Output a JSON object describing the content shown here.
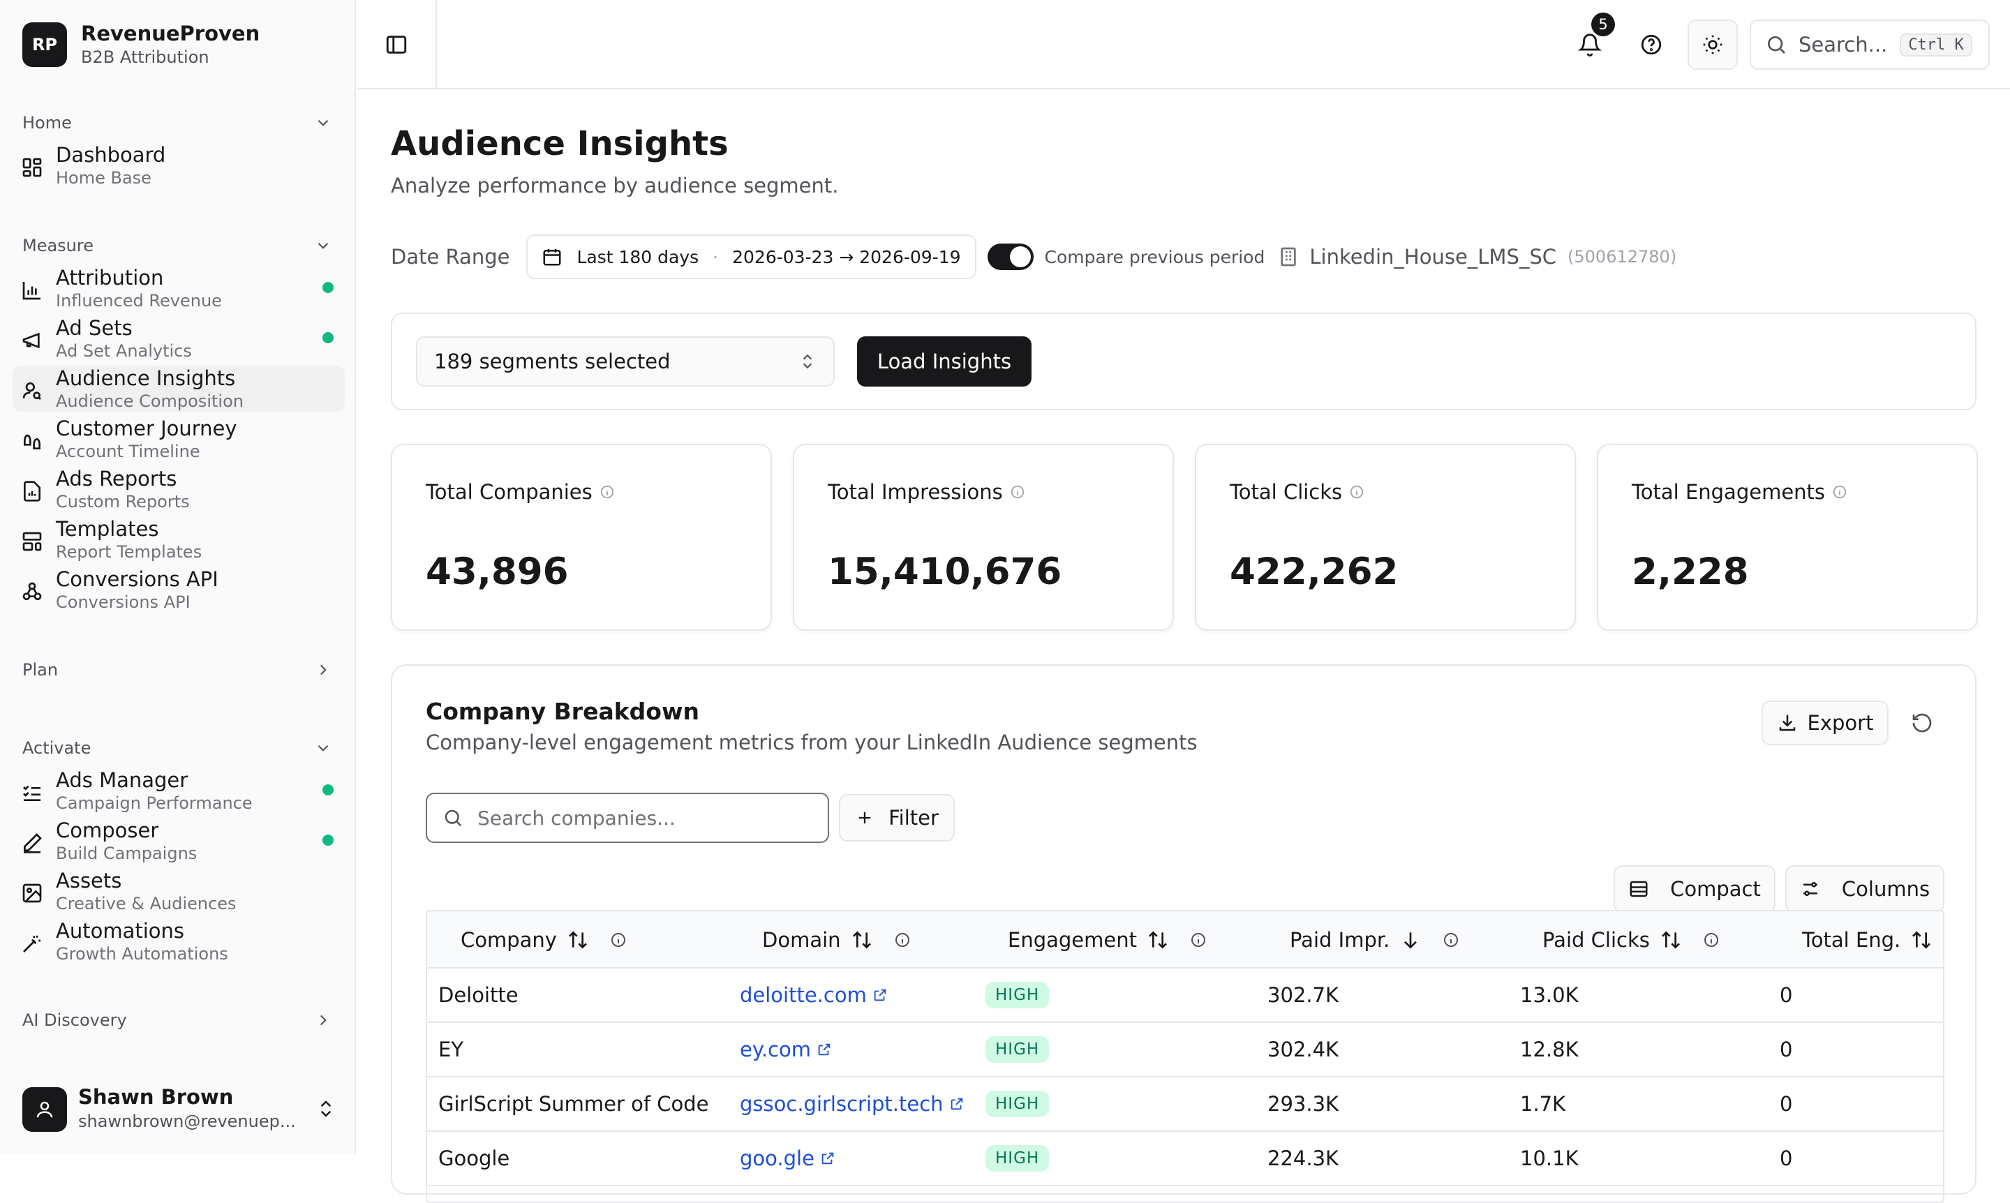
{
  "brand": {
    "initials": "RP",
    "name": "RevenueProven",
    "tagline": "B2B Attribution"
  },
  "sidebar": {
    "sections": [
      {
        "label": "Home",
        "items": [
          {
            "label": "Dashboard",
            "sub": "Home Base",
            "icon": "grid-icon"
          }
        ]
      },
      {
        "label": "Measure",
        "items": [
          {
            "label": "Attribution",
            "sub": "Influenced Revenue",
            "icon": "bar-chart-icon",
            "dot": true
          },
          {
            "label": "Ad Sets",
            "sub": "Ad Set Analytics",
            "icon": "megaphone-icon",
            "dot": true
          },
          {
            "label": "Audience Insights",
            "sub": "Audience Composition",
            "icon": "user-search-icon",
            "active": true
          },
          {
            "label": "Customer Journey",
            "sub": "Account Timeline",
            "icon": "footprints-icon"
          },
          {
            "label": "Ads Reports",
            "sub": "Custom Reports",
            "icon": "report-icon"
          },
          {
            "label": "Templates",
            "sub": "Report Templates",
            "icon": "layout-template-icon"
          },
          {
            "label": "Conversions API",
            "sub": "Conversions API",
            "icon": "webhook-icon"
          }
        ]
      },
      {
        "label": "Plan",
        "items": []
      },
      {
        "label": "Activate",
        "items": [
          {
            "label": "Ads Manager",
            "sub": "Campaign Performance",
            "icon": "list-checks-icon",
            "dot": true
          },
          {
            "label": "Composer",
            "sub": "Build Campaigns",
            "icon": "pen-icon",
            "dot": true
          },
          {
            "label": "Assets",
            "sub": "Creative & Audiences",
            "icon": "image-icon"
          },
          {
            "label": "Automations",
            "sub": "Growth Automations",
            "icon": "magic-wand-icon"
          }
        ]
      },
      {
        "label": "AI Discovery",
        "items": []
      }
    ]
  },
  "user": {
    "name": "Shawn Brown",
    "email": "shawnbrown@revenuep..."
  },
  "topbar": {
    "notification_count": "5",
    "search_placeholder": "Search...",
    "search_shortcut": "Ctrl K"
  },
  "page": {
    "title": "Audience Insights",
    "subtitle": "Analyze performance by audience segment."
  },
  "filters": {
    "date_label": "Date Range",
    "date_preset": "Last 180 days",
    "date_dot": "·",
    "date_span": "2026-03-23 → 2026-09-19",
    "compare_label": "Compare previous period",
    "compare_enabled": true,
    "account_name": "Linkedin_House_LMS_SC",
    "account_id": "(500612780)"
  },
  "segments": {
    "selected_label": "189 segments selected",
    "load_button": "Load Insights"
  },
  "stats": [
    {
      "label": "Total Companies",
      "value": "43,896"
    },
    {
      "label": "Total Impressions",
      "value": "15,410,676"
    },
    {
      "label": "Total Clicks",
      "value": "422,262"
    },
    {
      "label": "Total Engagements",
      "value": "2,228"
    }
  ],
  "breakdown": {
    "title": "Company Breakdown",
    "subtitle": "Company-level engagement metrics from your LinkedIn Audience segments",
    "export_label": "Export",
    "search_placeholder": "Search companies...",
    "filter_label": "Filter",
    "compact_label": "Compact",
    "columns_label": "Columns",
    "columns": [
      "Company",
      "Domain",
      "Engagement",
      "Paid Impr.",
      "Paid Clicks",
      "Total Eng."
    ],
    "rows": [
      {
        "company": "Deloitte",
        "domain": "deloitte.com",
        "engagement": "HIGH",
        "paid_impr": "302.7K",
        "paid_clicks": "13.0K",
        "total_eng": "0"
      },
      {
        "company": "EY",
        "domain": "ey.com",
        "engagement": "HIGH",
        "paid_impr": "302.4K",
        "paid_clicks": "12.8K",
        "total_eng": "0"
      },
      {
        "company": "GirlScript Summer of Code",
        "domain": "gssoc.girlscript.tech",
        "engagement": "HIGH",
        "paid_impr": "293.3K",
        "paid_clicks": "1.7K",
        "total_eng": "0"
      },
      {
        "company": "Google",
        "domain": "goo.gle",
        "engagement": "HIGH",
        "paid_impr": "224.3K",
        "paid_clicks": "10.1K",
        "total_eng": "0"
      }
    ]
  },
  "colors": {
    "accent": "#18181b",
    "status_dot": "#10b981",
    "link": "#1d4ed8",
    "badge_bg": "#d1fae5",
    "badge_text": "#047857"
  }
}
